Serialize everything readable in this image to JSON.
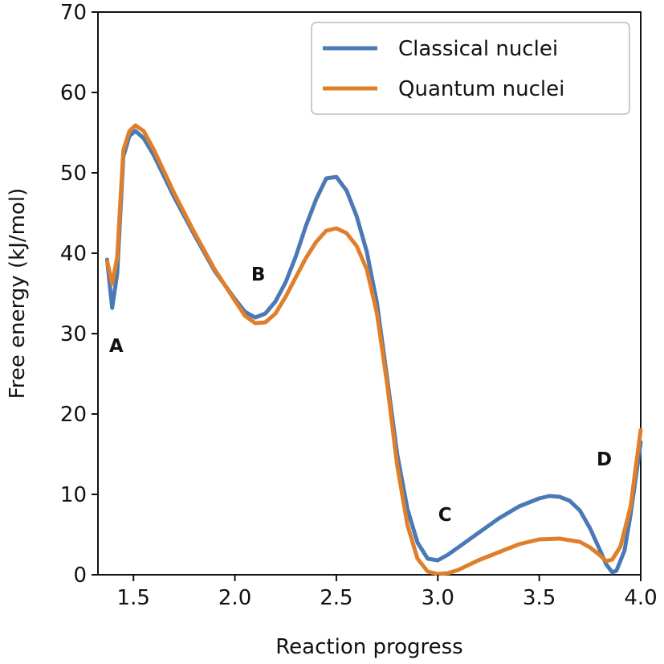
{
  "chart_data": {
    "type": "line",
    "xlabel": "Reaction progress",
    "ylabel": "Free energy (kJ/mol)",
    "xlim": [
      1.325,
      4.0
    ],
    "ylim": [
      0,
      70
    ],
    "xticks": [
      "1.5",
      "2.0",
      "2.5",
      "3.0",
      "3.5",
      "4.0"
    ],
    "xtick_values": [
      1.5,
      2.0,
      2.5,
      3.0,
      3.5,
      4.0
    ],
    "yticks": [
      "0",
      "10",
      "20",
      "30",
      "40",
      "50",
      "60",
      "70"
    ],
    "ytick_values": [
      0,
      10,
      20,
      30,
      40,
      50,
      60,
      70
    ],
    "grid": false,
    "legend_position": "top-right",
    "series": [
      {
        "name": "Classical nuclei",
        "color": "#4a79b5",
        "points": [
          [
            1.37,
            39.2
          ],
          [
            1.395,
            33.2
          ],
          [
            1.42,
            37.5
          ],
          [
            1.45,
            52.0
          ],
          [
            1.48,
            54.6
          ],
          [
            1.51,
            55.2
          ],
          [
            1.55,
            54.3
          ],
          [
            1.6,
            52.2
          ],
          [
            1.7,
            47.0
          ],
          [
            1.8,
            42.3
          ],
          [
            1.9,
            37.8
          ],
          [
            2.0,
            34.3
          ],
          [
            2.05,
            32.7
          ],
          [
            2.1,
            32.0
          ],
          [
            2.15,
            32.5
          ],
          [
            2.2,
            34.0
          ],
          [
            2.25,
            36.4
          ],
          [
            2.3,
            39.6
          ],
          [
            2.35,
            43.4
          ],
          [
            2.4,
            46.7
          ],
          [
            2.45,
            49.3
          ],
          [
            2.5,
            49.5
          ],
          [
            2.55,
            47.8
          ],
          [
            2.6,
            44.6
          ],
          [
            2.65,
            40.2
          ],
          [
            2.7,
            33.8
          ],
          [
            2.75,
            24.5
          ],
          [
            2.8,
            15.0
          ],
          [
            2.85,
            8.2
          ],
          [
            2.9,
            4.0
          ],
          [
            2.95,
            2.0
          ],
          [
            3.0,
            1.8
          ],
          [
            3.05,
            2.5
          ],
          [
            3.1,
            3.4
          ],
          [
            3.2,
            5.2
          ],
          [
            3.3,
            7.0
          ],
          [
            3.4,
            8.5
          ],
          [
            3.5,
            9.5
          ],
          [
            3.55,
            9.8
          ],
          [
            3.6,
            9.7
          ],
          [
            3.65,
            9.2
          ],
          [
            3.7,
            8.0
          ],
          [
            3.75,
            5.8
          ],
          [
            3.8,
            3.0
          ],
          [
            3.83,
            1.3
          ],
          [
            3.86,
            0.3
          ],
          [
            3.88,
            0.5
          ],
          [
            3.92,
            3.0
          ],
          [
            3.95,
            7.5
          ],
          [
            4.0,
            16.5
          ]
        ]
      },
      {
        "name": "Quantum nuclei",
        "color": "#e07f2a",
        "points": [
          [
            1.37,
            39.0
          ],
          [
            1.395,
            36.2
          ],
          [
            1.42,
            39.5
          ],
          [
            1.45,
            52.8
          ],
          [
            1.48,
            55.2
          ],
          [
            1.51,
            55.9
          ],
          [
            1.55,
            55.2
          ],
          [
            1.6,
            52.9
          ],
          [
            1.7,
            47.5
          ],
          [
            1.8,
            42.6
          ],
          [
            1.9,
            38.0
          ],
          [
            2.0,
            34.1
          ],
          [
            2.05,
            32.2
          ],
          [
            2.1,
            31.3
          ],
          [
            2.15,
            31.4
          ],
          [
            2.2,
            32.5
          ],
          [
            2.25,
            34.6
          ],
          [
            2.3,
            37.0
          ],
          [
            2.35,
            39.4
          ],
          [
            2.4,
            41.4
          ],
          [
            2.45,
            42.8
          ],
          [
            2.5,
            43.1
          ],
          [
            2.55,
            42.5
          ],
          [
            2.6,
            40.9
          ],
          [
            2.65,
            38.0
          ],
          [
            2.7,
            32.5
          ],
          [
            2.75,
            23.8
          ],
          [
            2.8,
            13.6
          ],
          [
            2.85,
            6.2
          ],
          [
            2.9,
            2.0
          ],
          [
            2.95,
            0.4
          ],
          [
            3.0,
            0.1
          ],
          [
            3.05,
            0.2
          ],
          [
            3.1,
            0.6
          ],
          [
            3.15,
            1.2
          ],
          [
            3.2,
            1.8
          ],
          [
            3.3,
            2.8
          ],
          [
            3.4,
            3.8
          ],
          [
            3.5,
            4.4
          ],
          [
            3.6,
            4.5
          ],
          [
            3.7,
            4.1
          ],
          [
            3.75,
            3.4
          ],
          [
            3.8,
            2.4
          ],
          [
            3.83,
            1.7
          ],
          [
            3.86,
            1.9
          ],
          [
            3.9,
            3.5
          ],
          [
            3.95,
            8.5
          ],
          [
            4.0,
            18.0
          ]
        ]
      }
    ],
    "annotations": [
      {
        "text": "A",
        "x": 1.415,
        "y": 28.5
      },
      {
        "text": "B",
        "x": 2.115,
        "y": 37.4
      },
      {
        "text": "C",
        "x": 3.035,
        "y": 7.5
      },
      {
        "text": "D",
        "x": 3.82,
        "y": 14.4
      }
    ]
  }
}
